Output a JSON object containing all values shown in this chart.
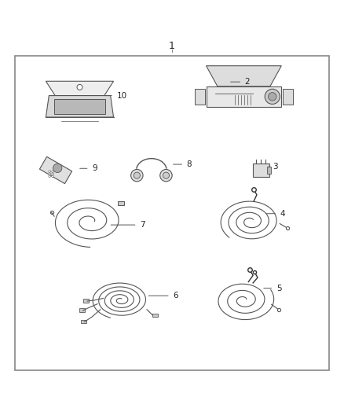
{
  "title": "1",
  "background_color": "#ffffff",
  "border_color": "#888888",
  "line_color": "#555555",
  "text_color": "#222222"
}
